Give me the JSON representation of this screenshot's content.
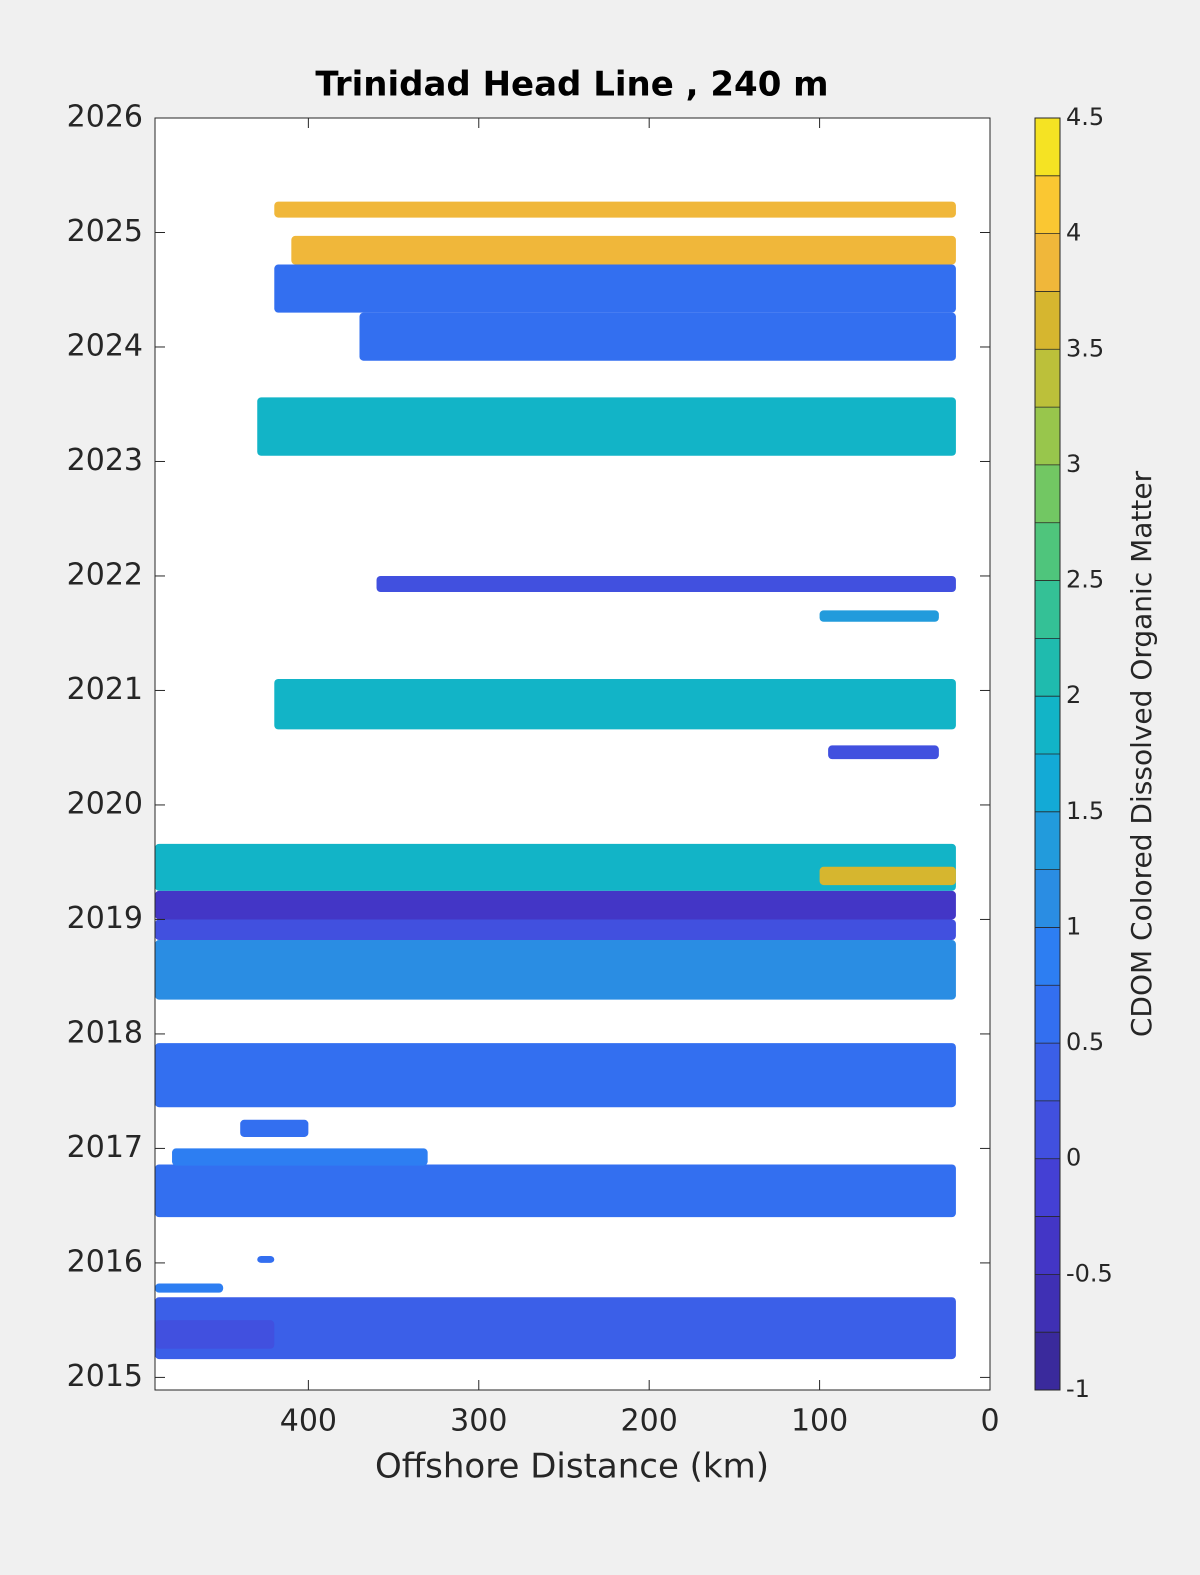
{
  "chart_data": {
    "type": "contourf",
    "title": "Trinidad Head Line , 240 m",
    "x_label": "Offshore Distance (km)",
    "colorbar_label": "CDOM Colored Dissolved Organic Matter",
    "xlim": [
      490,
      0
    ],
    "ylim": [
      2014.89,
      2026
    ],
    "xticks": [
      400,
      300,
      200,
      100,
      0
    ],
    "yticks": [
      2015,
      2016,
      2017,
      2018,
      2019,
      2020,
      2021,
      2022,
      2023,
      2024,
      2025,
      2026
    ],
    "levels": [
      -1,
      -0.75,
      -0.5,
      -0.25,
      0,
      0.25,
      0.5,
      0.75,
      1,
      1.25,
      1.5,
      1.75,
      2,
      2.25,
      2.5,
      2.75,
      3,
      3.25,
      3.5,
      3.75,
      4,
      4.25,
      4.5
    ],
    "cticks": [
      -1,
      -0.5,
      0,
      0.5,
      1,
      1.5,
      2,
      2.5,
      3,
      3.5,
      4,
      4.5
    ],
    "colormap": [
      "#3a2a9c",
      "#3f30b4",
      "#4336c6",
      "#4440d4",
      "#4150df",
      "#3b5fe8",
      "#336ff0",
      "#2d7ef2",
      "#2a8de3",
      "#229bdc",
      "#13aad6",
      "#12b4c7",
      "#1fbbae",
      "#34c196",
      "#4fc57c",
      "#72c763",
      "#98c64c",
      "#bcc03a",
      "#d6b62f",
      "#f0b73a",
      "#fac732",
      "#f5e323"
    ],
    "patches": {
      "x0": [
        420,
        410,
        420,
        370,
        430,
        360,
        100,
        420,
        95,
        490,
        100,
        490,
        490,
        490,
        490,
        490,
        480,
        440,
        430,
        490,
        490,
        490
      ],
      "x1": [
        20,
        20,
        20,
        20,
        20,
        20,
        30,
        20,
        30,
        20,
        20,
        20,
        20,
        20,
        20,
        20,
        330,
        400,
        420,
        450,
        20,
        420
      ],
      "y0": [
        2025.13,
        2024.72,
        2024.3,
        2023.88,
        2023.05,
        2021.86,
        2021.6,
        2020.66,
        2020.4,
        2019.25,
        2019.3,
        2019.0,
        2018.82,
        2018.3,
        2017.36,
        2016.4,
        2016.85,
        2017.1,
        2016.0,
        2015.74,
        2015.16,
        2015.25
      ],
      "y1": [
        2025.27,
        2024.97,
        2024.72,
        2024.3,
        2023.56,
        2022.0,
        2021.7,
        2021.1,
        2020.52,
        2019.66,
        2019.46,
        2019.25,
        2019.0,
        2018.82,
        2017.92,
        2016.86,
        2017.0,
        2017.25,
        2016.06,
        2015.82,
        2015.7,
        2015.5
      ],
      "values": [
        3.9,
        3.9,
        0.6,
        0.6,
        1.9,
        0.1,
        1.3,
        1.9,
        0.1,
        1.8,
        3.6,
        -0.4,
        0.2,
        1.2,
        0.5,
        0.6,
        0.9,
        0.7,
        0.7,
        0.9,
        0.4,
        0.1
      ]
    }
  }
}
